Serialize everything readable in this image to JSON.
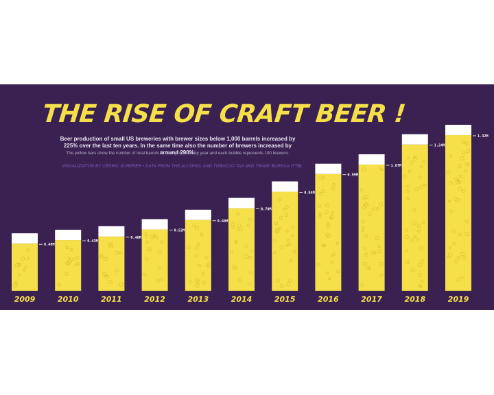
{
  "header": {
    "title": "THE RISE OF CRAFT BEER !",
    "subtitle": "Beer production of small US breweries with brewer sizes below 1,000 barrels increased by 225% over the last ten years. In the same time also the number of brewers increased by around 290%.",
    "note": "The yellow bars show the number of total barrels of beer produced by year and each bubble represents 100 brewers.",
    "credit": "VISUALIZATION BY CÉDRIC SCHERER • DATA FROM THE ALCOHOL AND TOBACCO TAX AND TRADE BUREAU (TTB)"
  },
  "colors": {
    "background": "#3a2151",
    "beer": "#f6e04a",
    "foam": "#ffffff",
    "bubble": "#d9c12c",
    "year_label": "#f6e04a",
    "value_label": "#ffffff"
  },
  "chart_data": {
    "type": "bar",
    "categories": [
      "2009",
      "2010",
      "2011",
      "2012",
      "2013",
      "2014",
      "2015",
      "2016",
      "2017",
      "2018",
      "2019"
    ],
    "values": [
      0.4,
      0.43,
      0.46,
      0.52,
      0.6,
      0.7,
      0.84,
      0.99,
      1.07,
      1.24,
      1.32
    ],
    "value_labels": [
      "0.40M",
      "0.43M",
      "0.46M",
      "0.52M",
      "0.60M",
      "0.70M",
      "0.84M",
      "0.99M",
      "1.07M",
      "1.24M",
      "1.32M"
    ],
    "title": "THE RISE OF CRAFT BEER !",
    "xlabel": "",
    "ylabel": "",
    "ylim": [
      0,
      1.4
    ],
    "grid": false,
    "legend": "none"
  }
}
